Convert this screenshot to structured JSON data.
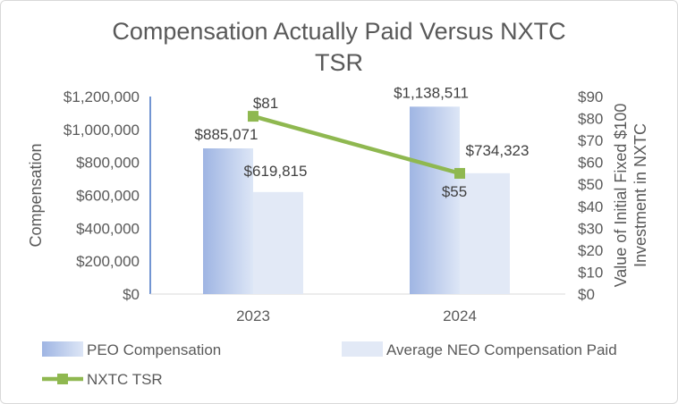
{
  "chart_data": {
    "type": "bar",
    "title_lines": [
      "Compensation Actually Paid Versus NXTC",
      "TSR"
    ],
    "categories": [
      "2023",
      "2024"
    ],
    "series": [
      {
        "name": "PEO Compensation",
        "values": [
          885071,
          1138511
        ],
        "labels": [
          "$885,071",
          "$1,138,511"
        ],
        "color": "#a9bde6"
      },
      {
        "name": "Average NEO Compensation Paid",
        "values": [
          619815,
          734323
        ],
        "labels": [
          "$619,815",
          "$734,323"
        ],
        "color": "#e2e9f6"
      }
    ],
    "line_series": {
      "name": "NXTC TSR",
      "values": [
        81,
        55
      ],
      "labels": [
        "$81",
        "$55"
      ],
      "color": "#8fb850"
    },
    "ylabel": "Compensation",
    "ylim": [
      0,
      1200000
    ],
    "y_ticks": [
      "$0",
      "$200,000",
      "$400,000",
      "$600,000",
      "$800,000",
      "$1,000,000",
      "$1,200,000"
    ],
    "y2label_lines": [
      "Value of Initial Fixed $100",
      "Investment in NXTC"
    ],
    "y2lim": [
      0,
      90
    ],
    "y2_ticks": [
      "$0",
      "$10",
      "$20",
      "$30",
      "$40",
      "$50",
      "$60",
      "$70",
      "$80",
      "$90"
    ],
    "legend_position": "bottom",
    "grid": false
  }
}
